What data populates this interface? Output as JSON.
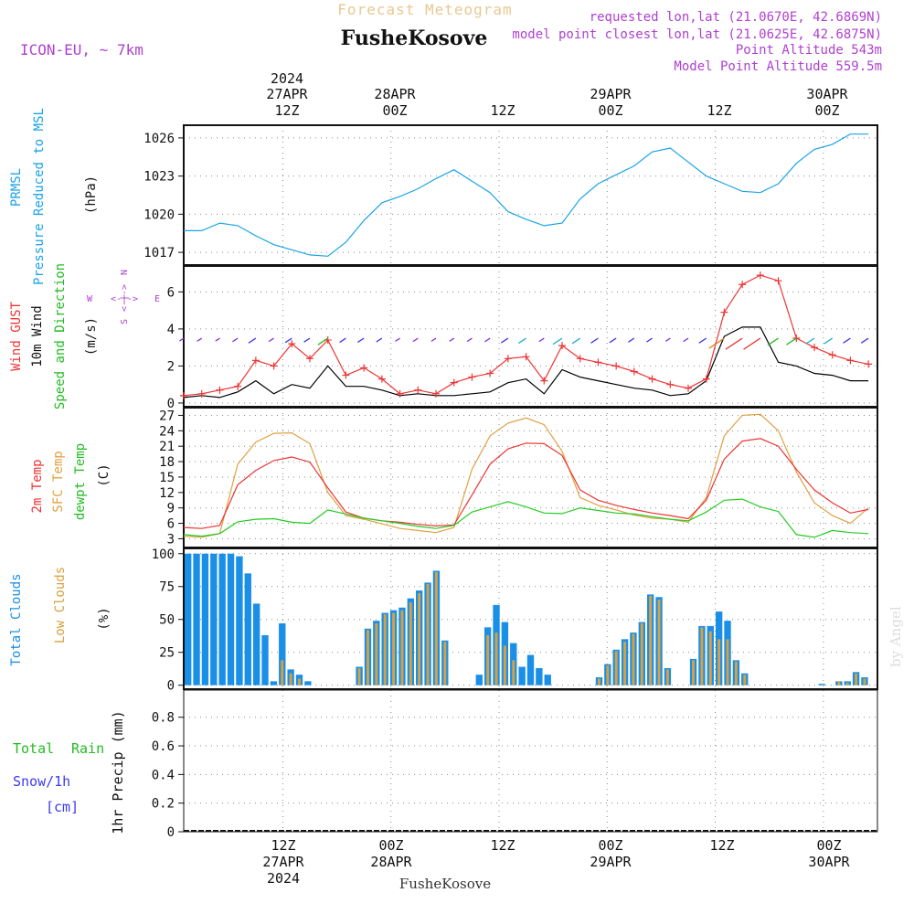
{
  "header": {
    "forecast_title": "Forecast Meteogram",
    "station": "FusheKosove",
    "model": "ICON-EU, ~ 7km",
    "requested": "requested lon,lat (21.0670E, 42.6869N)",
    "closest": "model point closest lon,lat (21.0625E, 42.6875N)",
    "point_alt": "Point Altitude 543m",
    "model_alt": "Model Point Altitude 559.5m",
    "footer_station": "FusheKosove",
    "watermark": "by Angel"
  },
  "colors": {
    "pressure": "#1aa3e8",
    "gust": "#ee3333",
    "wind": "#000000",
    "dir": "#22bb22",
    "temp2m": "#ee3333",
    "sfc": "#e0a040",
    "dew": "#22cc22",
    "total_clouds": "#1a8fe8",
    "low_clouds": "#d9a040",
    "rain": "#22bb22",
    "snow": "#3a3aee",
    "compass": "#b040d0"
  },
  "axes": {
    "top": [
      {
        "line1": "2024",
        "line2": "27APR",
        "line3": "12Z"
      },
      {
        "line1": "",
        "line2": "28APR",
        "line3": "00Z"
      },
      {
        "line1": "",
        "line2": "",
        "line3": "12Z"
      },
      {
        "line1": "",
        "line2": "29APR",
        "line3": "00Z"
      },
      {
        "line1": "",
        "line2": "",
        "line3": "12Z"
      },
      {
        "line1": "",
        "line2": "30APR",
        "line3": "00Z"
      }
    ],
    "bottom": [
      {
        "line1": "12Z",
        "line2": "27APR",
        "line3": "2024"
      },
      {
        "line1": "00Z",
        "line2": "28APR",
        "line3": ""
      },
      {
        "line1": "12Z",
        "line2": "",
        "line3": ""
      },
      {
        "line1": "00Z",
        "line2": "29APR",
        "line3": ""
      },
      {
        "line1": "12Z",
        "line2": "",
        "line3": ""
      },
      {
        "line1": "00Z",
        "line2": "30APR",
        "line3": ""
      }
    ]
  },
  "labels": {
    "p1": [
      "PRMSL",
      "Pressure Reduced to MSL",
      "(hPa)"
    ],
    "p2": [
      "Wind GUST",
      "10m Wind",
      "Speed and Direction",
      "(m/s)"
    ],
    "p3": [
      "2m Temp",
      "SFC Temp",
      "dewpt Temp",
      "(C)"
    ],
    "p4": [
      "Total Clouds",
      "Low Clouds",
      "(%)"
    ],
    "p5": [
      "Total",
      "Rain",
      "Snow/1h",
      "[cm]",
      "1hr Precip (mm)"
    ],
    "compass": [
      "N",
      "W",
      "E",
      "S",
      "<-|->"
    ]
  },
  "chart_data": [
    {
      "type": "line",
      "name": "PRMSL",
      "ylabel": "(hPa)",
      "x_hours": [
        0,
        2,
        4,
        6,
        8,
        10,
        12,
        14,
        16,
        18,
        20,
        22,
        24,
        26,
        28,
        30,
        32,
        34,
        36,
        38,
        40,
        42,
        44,
        46,
        48,
        50,
        52,
        54,
        56,
        58,
        60,
        62,
        64,
        66,
        68,
        70,
        72,
        74,
        76
      ],
      "values": [
        1018.7,
        1018.7,
        1019.3,
        1019.1,
        1018.3,
        1017.6,
        1017.2,
        1016.8,
        1016.7,
        1017.8,
        1019.5,
        1020.9,
        1021.4,
        1022.0,
        1022.8,
        1023.5,
        1022.6,
        1021.7,
        1020.2,
        1019.6,
        1019.1,
        1019.3,
        1021.2,
        1022.4,
        1023.1,
        1023.8,
        1024.9,
        1025.2,
        1024.1,
        1023.0,
        1022.4,
        1021.8,
        1021.7,
        1022.4,
        1024.0,
        1025.1,
        1025.5,
        1026.3,
        1026.3
      ],
      "yticks": [
        1017,
        1020,
        1023,
        1026
      ],
      "ylim": [
        1016.0,
        1027.0
      ]
    },
    {
      "type": "line",
      "name": "Wind",
      "ylabel": "(m/s)",
      "x_hours": [
        0,
        2,
        4,
        6,
        8,
        10,
        12,
        14,
        16,
        18,
        20,
        22,
        24,
        26,
        28,
        30,
        32,
        34,
        36,
        38,
        40,
        42,
        44,
        46,
        48,
        50,
        52,
        54,
        56,
        58,
        60,
        62,
        64,
        66,
        68,
        70,
        72,
        74,
        76
      ],
      "series": [
        {
          "name": "Wind GUST",
          "values": [
            0.4,
            0.5,
            0.7,
            0.9,
            2.3,
            2.0,
            3.2,
            2.4,
            3.4,
            1.5,
            1.9,
            1.3,
            0.5,
            0.7,
            0.5,
            1.1,
            1.4,
            1.6,
            2.4,
            2.5,
            1.2,
            3.1,
            2.4,
            2.2,
            2.0,
            1.7,
            1.3,
            1.0,
            0.8,
            1.3,
            4.9,
            6.4,
            6.9,
            6.6,
            3.5,
            3.0,
            2.6,
            2.3,
            2.1
          ]
        },
        {
          "name": "10m Wind",
          "values": [
            0.3,
            0.4,
            0.3,
            0.6,
            1.2,
            0.5,
            1.0,
            0.8,
            2.0,
            0.9,
            0.9,
            0.7,
            0.4,
            0.5,
            0.4,
            0.4,
            0.5,
            0.6,
            1.1,
            1.3,
            0.5,
            1.8,
            1.4,
            1.2,
            1.0,
            0.8,
            0.7,
            0.4,
            0.5,
            1.2,
            3.6,
            4.1,
            4.1,
            2.2,
            2.0,
            1.6,
            1.5,
            1.2,
            1.2
          ]
        }
      ],
      "yticks": [
        0,
        2,
        4,
        6
      ],
      "ylim": [
        -0.2,
        7.4
      ]
    },
    {
      "type": "line",
      "name": "Temperature",
      "ylabel": "(C)",
      "x_hours": [
        0,
        2,
        4,
        6,
        8,
        10,
        12,
        14,
        16,
        18,
        20,
        22,
        24,
        26,
        28,
        30,
        32,
        34,
        36,
        38,
        40,
        42,
        44,
        46,
        48,
        50,
        52,
        54,
        56,
        58,
        60,
        62,
        64,
        66,
        68,
        70,
        72,
        74,
        76
      ],
      "series": [
        {
          "name": "2m Temp",
          "values": [
            5.2,
            5.0,
            5.6,
            13.5,
            16.3,
            18.2,
            18.9,
            17.9,
            12.9,
            8.2,
            7.0,
            6.5,
            6.2,
            5.8,
            5.5,
            5.7,
            11.5,
            17.5,
            20.5,
            21.6,
            21.5,
            19.2,
            12.5,
            10.5,
            9.5,
            8.7,
            8.0,
            7.5,
            6.9,
            10.5,
            18.5,
            22.0,
            22.5,
            21.0,
            16.5,
            12.5,
            10.0,
            8.0,
            8.7
          ]
        },
        {
          "name": "SFC Temp",
          "values": [
            3.5,
            3.3,
            4.0,
            17.5,
            21.8,
            23.5,
            23.6,
            21.5,
            12.0,
            7.5,
            6.8,
            5.9,
            5.0,
            4.6,
            4.2,
            5.2,
            16.5,
            23.0,
            25.5,
            26.5,
            25.2,
            20.0,
            11.0,
            9.5,
            8.6,
            7.6,
            7.0,
            6.8,
            6.2,
            11.0,
            23.0,
            27.0,
            27.2,
            24.0,
            16.0,
            10.0,
            7.5,
            6.0,
            9.0
          ]
        },
        {
          "name": "dewpt Temp",
          "values": [
            3.8,
            3.5,
            4.0,
            6.3,
            6.8,
            6.9,
            6.2,
            6.0,
            8.6,
            7.8,
            7.0,
            6.5,
            6.0,
            5.4,
            5.0,
            5.6,
            8.2,
            9.2,
            10.2,
            9.2,
            8.0,
            7.9,
            9.0,
            8.5,
            8.0,
            7.8,
            7.3,
            6.8,
            6.5,
            8.2,
            10.5,
            10.7,
            9.2,
            8.3,
            3.8,
            3.3,
            4.6,
            4.2,
            4.0
          ]
        }
      ],
      "yticks": [
        3,
        6,
        9,
        12,
        15,
        18,
        21,
        24,
        27
      ],
      "ylim": [
        1.3,
        28.5
      ]
    },
    {
      "type": "bar",
      "name": "Clouds",
      "ylabel": "(%)",
      "series": [
        {
          "name": "Total Clouds",
          "values": [
            100,
            100,
            100,
            100,
            100,
            100,
            98,
            85,
            62,
            38,
            3,
            47,
            12,
            8,
            3,
            0,
            0,
            0,
            0,
            0,
            14,
            43,
            49,
            55,
            57,
            59,
            66,
            72,
            78,
            87,
            34,
            0,
            0,
            0,
            8,
            44,
            61,
            48,
            32,
            14,
            23,
            13,
            8,
            0,
            0,
            0,
            0,
            0,
            6,
            16,
            27,
            35,
            40,
            48,
            69,
            67,
            13,
            0,
            0,
            20,
            45,
            45,
            56,
            49,
            19,
            9,
            0,
            0,
            0,
            0,
            0,
            0,
            0,
            0,
            1,
            0,
            3,
            3,
            10,
            6,
            0
          ]
        },
        {
          "name": "Low Clouds",
          "values": [
            0,
            0,
            0,
            0,
            0,
            0,
            0,
            0,
            0,
            0,
            0,
            19,
            9,
            5,
            0,
            0,
            0,
            0,
            0,
            0,
            13,
            42,
            47,
            54,
            55,
            57,
            63,
            70,
            77,
            86,
            33,
            0,
            0,
            0,
            0,
            38,
            40,
            30,
            19,
            0,
            0,
            0,
            0,
            0,
            0,
            0,
            0,
            0,
            5,
            15,
            26,
            33,
            39,
            47,
            68,
            65,
            12,
            0,
            0,
            19,
            44,
            41,
            35,
            35,
            18,
            8,
            0,
            0,
            0,
            0,
            0,
            0,
            0,
            0,
            0,
            0,
            3,
            2,
            9,
            5,
            0
          ]
        }
      ],
      "yticks": [
        0,
        25,
        50,
        75,
        100
      ],
      "ylim": [
        -3,
        104
      ]
    },
    {
      "type": "bar",
      "name": "1hr Precip",
      "ylabel": "1hr Precip (mm)",
      "series": [
        {
          "name": "Rain",
          "values": []
        },
        {
          "name": "Snow/1h",
          "values": []
        }
      ],
      "yticks": [
        0,
        0.2,
        0.4,
        0.6,
        0.8
      ],
      "ylim": [
        0,
        0.99
      ]
    }
  ]
}
